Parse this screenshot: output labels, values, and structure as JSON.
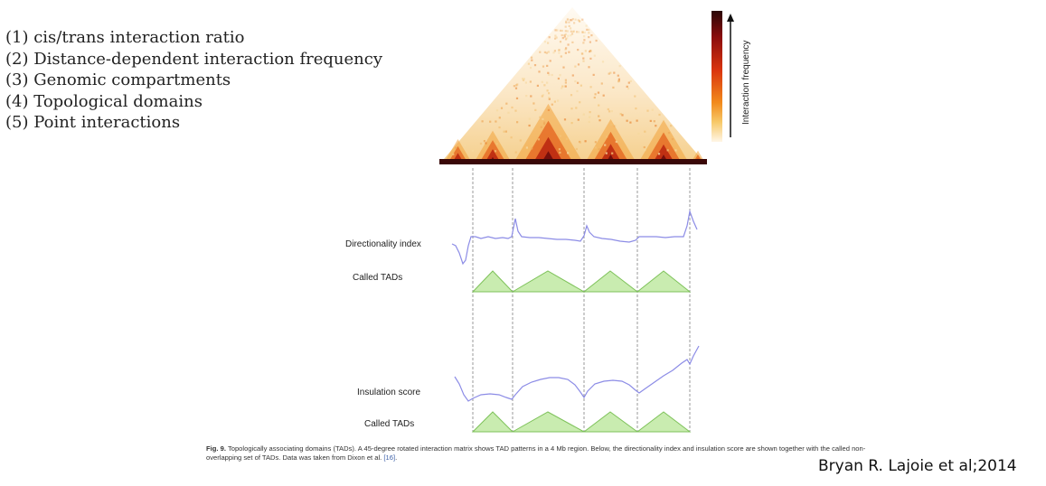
{
  "features_list": [
    "(1) cis/trans interaction ratio",
    "(2) Distance-dependent interaction frequency",
    "(3) Genomic compartments",
    "(4) Topological domains",
    "(5) Point interactions"
  ],
  "figure": {
    "colorbar_label": "Interaction frequency",
    "colorbar_colors": [
      "#2a0707",
      "#8b0d0d",
      "#d9340f",
      "#f28a1c",
      "#f7c969",
      "#fff6e6"
    ],
    "labels": {
      "directionality": "Directionality index",
      "called_tads_1": "Called TADs",
      "insulation": "Insulation score",
      "called_tads_2": "Called TADs"
    },
    "tad_fill": "#c9ecb0",
    "tad_stroke": "#7ec25a",
    "track_color": "#8c8ce6"
  },
  "caption": {
    "label": "Fig. 9.",
    "text": "Topologically associating domains (TADs). A 45-degree rotated interaction matrix shows TAD patterns in a 4 Mb region. Below, the directionality index and insulation score are shown together with the called non-overlapping set of TADs. Data was taken from Dixon et al.",
    "ref": "[16]",
    "end": "."
  },
  "citation": "Bryan R. Lajoie et al;2014"
}
